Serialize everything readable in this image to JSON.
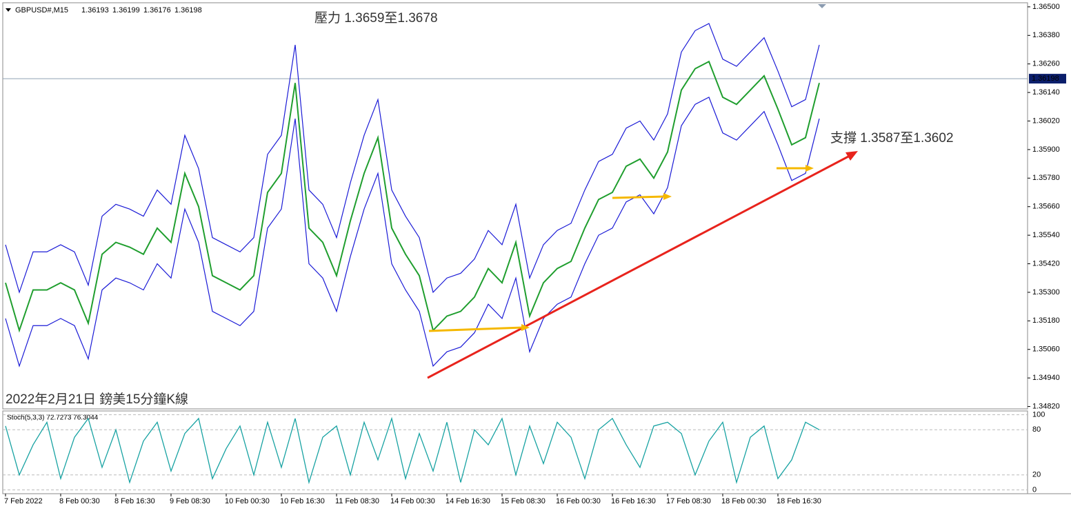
{
  "chart_data": {
    "type": "line",
    "title": "GBPUSD#,M15",
    "ohlc": [
      1.36193,
      1.36199,
      1.36176,
      1.36198
    ],
    "annotations": [
      "壓力 1.3659至1.3678",
      "支撐 1.3587至1.3602",
      "2022年2月21日 鎊美15分鐘K線"
    ],
    "xtick_labels": [
      "7 Feb 2022",
      "8 Feb 00:30",
      "8 Feb 16:30",
      "9 Feb 08:30",
      "10 Feb 00:30",
      "10 Feb 16:30",
      "11 Feb 08:30",
      "14 Feb 00:30",
      "14 Feb 16:30",
      "15 Feb 08:30",
      "16 Feb 00:30",
      "16 Feb 16:30",
      "17 Feb 08:30",
      "18 Feb 00:30",
      "18 Feb 16:30"
    ],
    "ylim": [
      1.3481,
      1.3652
    ],
    "yticks": [
      {
        "value": 1.365,
        "label": "1.36500"
      },
      {
        "value": 1.3638,
        "label": "1.36380"
      },
      {
        "value": 1.3626,
        "label": "1.36260"
      },
      {
        "value": 1.3614,
        "label": "1.36140"
      },
      {
        "value": 1.3602,
        "label": "1.36020"
      },
      {
        "value": 1.359,
        "label": "1.35900"
      },
      {
        "value": 1.3578,
        "label": "1.35780"
      },
      {
        "value": 1.3566,
        "label": "1.35660"
      },
      {
        "value": 1.3554,
        "label": "1.35540"
      },
      {
        "value": 1.3542,
        "label": "1.35420"
      },
      {
        "value": 1.353,
        "label": "1.35300"
      },
      {
        "value": 1.3518,
        "label": "1.35180"
      },
      {
        "value": 1.3506,
        "label": "1.35060"
      },
      {
        "value": 1.3494,
        "label": "1.34940"
      },
      {
        "value": 1.3482,
        "label": "1.34820"
      }
    ],
    "series": [
      {
        "color": "#1f9e2e",
        "values": [
          1.3534,
          1.3514,
          1.3531,
          1.3531,
          1.3534,
          1.3531,
          1.3517,
          1.3546,
          1.3551,
          1.3549,
          1.3546,
          1.3557,
          1.3551,
          1.358,
          1.3566,
          1.3537,
          1.3534,
          1.3531,
          1.3537,
          1.3572,
          1.358,
          1.3618,
          1.3557,
          1.3551,
          1.3537,
          1.356,
          1.358,
          1.3595,
          1.3557,
          1.3546,
          1.3537,
          1.3514,
          1.352,
          1.3522,
          1.3528,
          1.354,
          1.3534,
          1.3551,
          1.352,
          1.3534,
          1.354,
          1.3543,
          1.3557,
          1.3569,
          1.3572,
          1.3583,
          1.3586,
          1.3578,
          1.3589,
          1.3615,
          1.3624,
          1.3627,
          1.3612,
          1.3609,
          1.3615,
          1.3621,
          1.3607,
          1.3592,
          1.3595,
          1.3618
        ]
      },
      {
        "color": "#1a1ad6",
        "values": [
          1.355,
          1.353,
          1.3547,
          1.3547,
          1.355,
          1.3547,
          1.3533,
          1.3562,
          1.3567,
          1.3565,
          1.3562,
          1.3573,
          1.3567,
          1.3596,
          1.3582,
          1.3553,
          1.355,
          1.3547,
          1.3553,
          1.3588,
          1.3596,
          1.3634,
          1.3573,
          1.3567,
          1.3553,
          1.3576,
          1.3596,
          1.3611,
          1.3573,
          1.3562,
          1.3553,
          1.353,
          1.3536,
          1.3538,
          1.3544,
          1.3556,
          1.355,
          1.3567,
          1.3536,
          1.355,
          1.3556,
          1.3559,
          1.3573,
          1.3585,
          1.3588,
          1.3599,
          1.3602,
          1.3594,
          1.3605,
          1.3631,
          1.364,
          1.3643,
          1.3628,
          1.3625,
          1.3631,
          1.3637,
          1.3623,
          1.3608,
          1.3611,
          1.3634
        ]
      },
      {
        "color": "#1a1ad6",
        "values": [
          1.3519,
          1.3499,
          1.3516,
          1.3516,
          1.3519,
          1.3516,
          1.3502,
          1.3531,
          1.3536,
          1.3534,
          1.3531,
          1.3542,
          1.3536,
          1.3565,
          1.3551,
          1.3522,
          1.3519,
          1.3516,
          1.3522,
          1.3557,
          1.3565,
          1.3603,
          1.3542,
          1.3536,
          1.3522,
          1.3545,
          1.3565,
          1.358,
          1.3542,
          1.3531,
          1.3522,
          1.3499,
          1.3505,
          1.3507,
          1.3513,
          1.3525,
          1.3519,
          1.3536,
          1.3505,
          1.3519,
          1.3525,
          1.3528,
          1.3542,
          1.3554,
          1.3557,
          1.3568,
          1.3571,
          1.3563,
          1.3574,
          1.36,
          1.3609,
          1.3612,
          1.3597,
          1.3594,
          1.36,
          1.3606,
          1.3592,
          1.3577,
          1.358,
          1.3603
        ]
      }
    ],
    "stoch": {
      "label": "Stoch(5,3,3) 72.7273 76.3044",
      "color": "#17a2a2",
      "ylim": [
        -5,
        105
      ],
      "yticks": [
        100,
        80,
        20,
        0
      ],
      "values": [
        85,
        20,
        60,
        90,
        15,
        70,
        95,
        30,
        80,
        10,
        65,
        90,
        25,
        75,
        95,
        15,
        55,
        85,
        20,
        90,
        30,
        95,
        10,
        70,
        85,
        20,
        90,
        40,
        95,
        15,
        75,
        25,
        90,
        10,
        80,
        60,
        95,
        20,
        85,
        35,
        90,
        70,
        15,
        80,
        95,
        60,
        30,
        85,
        90,
        75,
        20,
        65,
        90,
        10,
        70,
        85,
        15,
        40,
        90,
        80
      ]
    }
  }
}
